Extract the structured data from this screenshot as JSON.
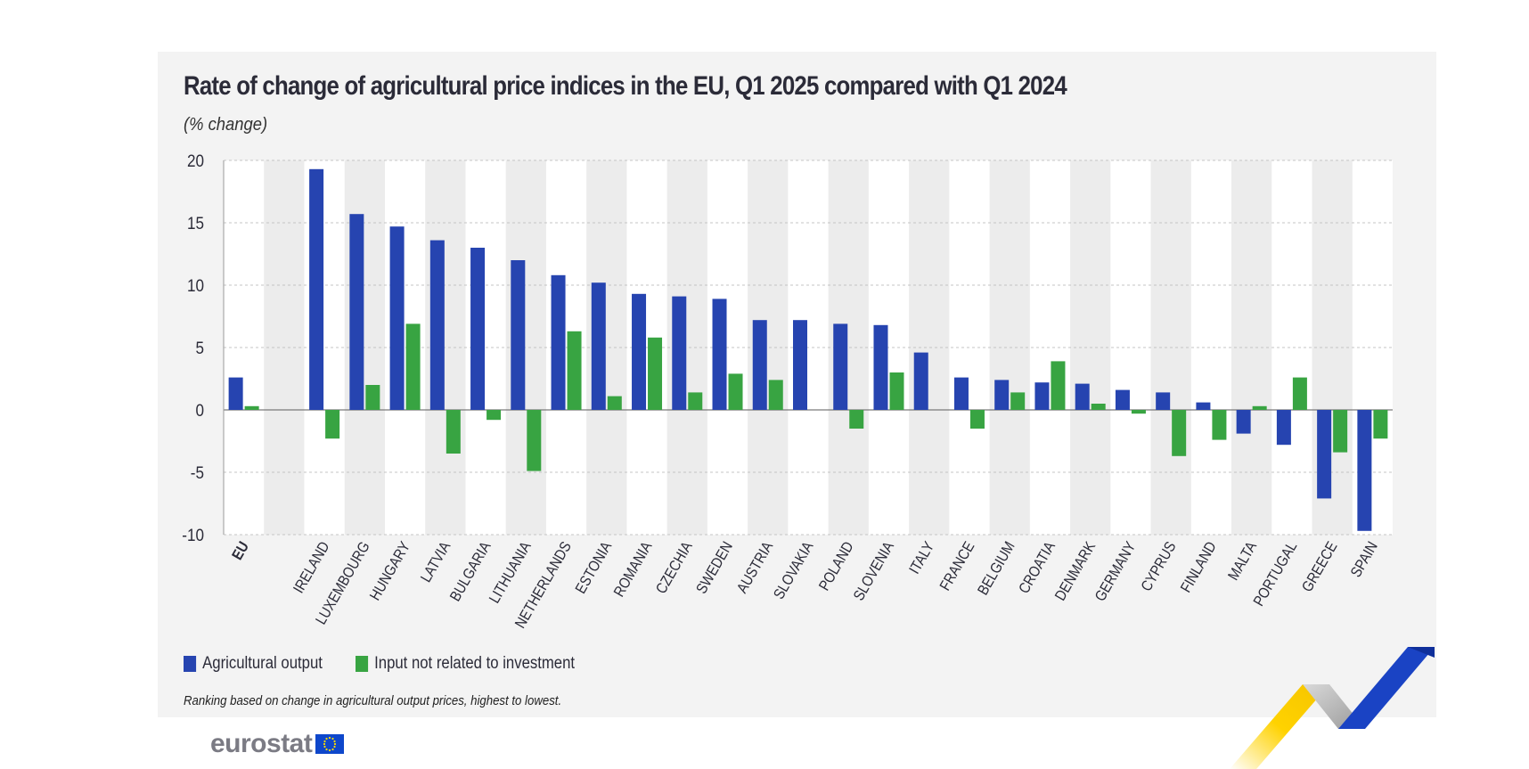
{
  "header": {
    "title": "Rate of change of agricultural price indices in the EU, Q1 2025 compared with Q1 2024",
    "subtitle": "(% change)"
  },
  "legend": {
    "items": [
      {
        "label": "Agricultural output",
        "color": "#2644b0"
      },
      {
        "label": "Input not related to investment",
        "color": "#38a442"
      }
    ]
  },
  "footnote": "Ranking based on change in agricultural output prices, highest to lowest.",
  "logo": {
    "text": "eurostat",
    "flag_icon": "eu-flag-icon"
  },
  "chart_data": {
    "type": "bar",
    "title": "Rate of change of agricultural price indices in the EU, Q1 2025 compared with Q1 2024",
    "subtitle": "(% change)",
    "categories": [
      "EU",
      "IRELAND",
      "LUXEMBOURG",
      "HUNGARY",
      "LATVIA",
      "BULGARIA",
      "LITHUANIA",
      "NETHERLANDS",
      "ESTONIA",
      "ROMANIA",
      "CZECHIA",
      "SWEDEN",
      "AUSTRIA",
      "SLOVAKIA",
      "POLAND",
      "SLOVENIA",
      "ITALY",
      "FRANCE",
      "BELGIUM",
      "CROATIA",
      "DENMARK",
      "GERMANY",
      "CYPRUS",
      "FINLAND",
      "MALTA",
      "PORTUGAL",
      "GREECE",
      "SPAIN"
    ],
    "series": [
      {
        "name": "Agricultural output",
        "color": "#2644b0",
        "values": [
          2.6,
          19.3,
          15.7,
          14.7,
          13.6,
          13.0,
          12.0,
          10.8,
          10.2,
          9.3,
          9.1,
          8.9,
          7.2,
          7.2,
          6.9,
          6.8,
          4.6,
          2.6,
          2.4,
          2.2,
          2.1,
          1.6,
          1.4,
          0.6,
          -1.9,
          -2.8,
          -7.1,
          -9.7
        ]
      },
      {
        "name": "Input not related to investment",
        "color": "#38a442",
        "values": [
          0.3,
          -2.3,
          2.0,
          6.9,
          -3.5,
          -0.8,
          -4.9,
          6.3,
          1.1,
          5.8,
          1.4,
          2.9,
          2.4,
          0.0,
          -1.5,
          3.0,
          0.0,
          -1.5,
          1.4,
          3.9,
          0.5,
          -0.3,
          -3.7,
          -2.4,
          0.3,
          2.6,
          -3.4,
          -2.3
        ]
      }
    ],
    "yticks": [
      20,
      15,
      10,
      5,
      0,
      -5,
      -10
    ],
    "ylim": [
      -10,
      20
    ],
    "xlabel": "",
    "ylabel": "",
    "grid": true,
    "legend_position": "bottom-left",
    "highlight_category": "EU"
  }
}
